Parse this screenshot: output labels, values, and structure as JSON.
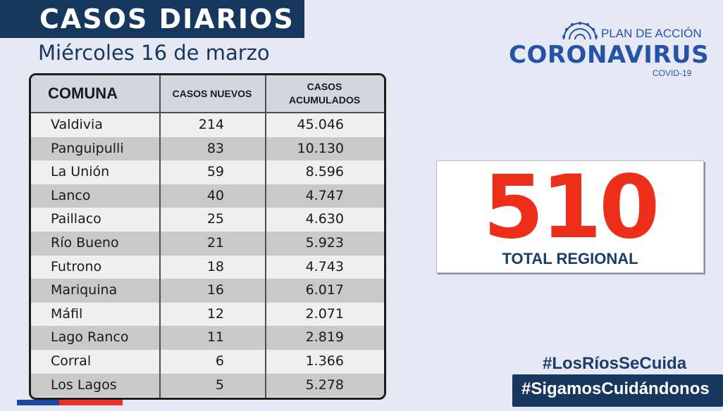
{
  "header": {
    "title": "CASOS DIARIOS",
    "date": "Miércoles 16 de marzo"
  },
  "logo": {
    "line1": "PLAN DE ACCIÓN",
    "line2": "CORONAVIRUS",
    "line3": "COVID-19",
    "icon": "coronavirus-icon",
    "color": "#2553a6"
  },
  "table": {
    "headers": {
      "comuna": "COMUNA",
      "nuevos": "CASOS NUEVOS",
      "acum_line1": "CASOS",
      "acum_line2": "ACUMULADOS"
    },
    "rows": [
      {
        "comuna": "Valdivia",
        "nuevos": "214",
        "acumulados": "45.046"
      },
      {
        "comuna": "Panguipulli",
        "nuevos": "83",
        "acumulados": "10.130"
      },
      {
        "comuna": "La Unión",
        "nuevos": "59",
        "acumulados": "8.596"
      },
      {
        "comuna": "Lanco",
        "nuevos": "40",
        "acumulados": "4.747"
      },
      {
        "comuna": "Paillaco",
        "nuevos": "25",
        "acumulados": "4.630"
      },
      {
        "comuna": "Río Bueno",
        "nuevos": "21",
        "acumulados": "5.923"
      },
      {
        "comuna": "Futrono",
        "nuevos": "18",
        "acumulados": "4.743"
      },
      {
        "comuna": "Mariquina",
        "nuevos": "16",
        "acumulados": "6.017"
      },
      {
        "comuna": "Máfil",
        "nuevos": "12",
        "acumulados": "2.071"
      },
      {
        "comuna": "Lago Ranco",
        "nuevos": "11",
        "acumulados": "2.819"
      },
      {
        "comuna": "Corral",
        "nuevos": "6",
        "acumulados": "1.366"
      },
      {
        "comuna": "Los Lagos",
        "nuevos": "5",
        "acumulados": "5.278"
      }
    ]
  },
  "total": {
    "value": "510",
    "label": "TOTAL REGIONAL",
    "color": "#ed2f1a"
  },
  "hashtags": {
    "first": "#LosRíosSeCuida",
    "second": "#SigamosCuidándonos"
  },
  "colors": {
    "navy": "#16385e",
    "background": "#e6e8f4"
  }
}
